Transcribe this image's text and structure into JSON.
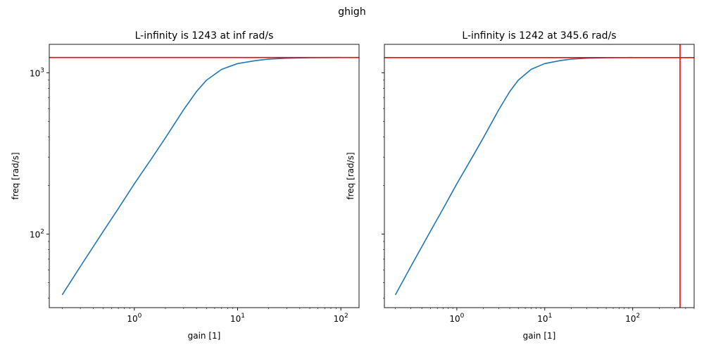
{
  "figure": {
    "suptitle": "ghigh"
  },
  "colors": {
    "curve": "#1f77b4",
    "limit": "#ff0000",
    "axes": "#000000"
  },
  "chart_data": [
    {
      "type": "line",
      "title": "L-infinity is 1243 at inf rad/s",
      "xlabel": "gain [1]",
      "ylabel": "freq [rad/s]",
      "xscale": "log",
      "yscale": "log",
      "xlim": [
        0.15,
        150
      ],
      "ylim": [
        35,
        1500
      ],
      "xticks": [
        1,
        10,
        100
      ],
      "xtick_labels": [
        "10^0",
        "10^1",
        "10^2"
      ],
      "yticks": [
        100,
        1000
      ],
      "ytick_labels": [
        "10^2",
        "10^3"
      ],
      "grid": false,
      "series": [
        {
          "x": [
            0.2,
            0.3,
            0.5,
            0.7,
            1.0,
            1.5,
            2.0,
            3.0,
            4.0,
            5.0,
            7.0,
            10.0,
            15.0,
            20.0,
            30.0,
            50.0,
            100.0
          ],
          "y": [
            42,
            63,
            104,
            144,
            205,
            300,
            395,
            590,
            765,
            900,
            1050,
            1140,
            1190,
            1215,
            1230,
            1240,
            1243
          ]
        }
      ],
      "hlines": [
        1243
      ],
      "vlines": []
    },
    {
      "type": "line",
      "title": "L-infinity is 1242 at 345.6 rad/s",
      "xlabel": "gain [1]",
      "ylabel": "freq [rad/s]",
      "xscale": "log",
      "yscale": "log",
      "xlim": [
        0.15,
        500
      ],
      "ylim": [
        35,
        1500
      ],
      "xticks": [
        1,
        10,
        100
      ],
      "xtick_labels": [
        "10^0",
        "10^1",
        "10^2"
      ],
      "yticks": [
        100,
        1000
      ],
      "ytick_labels": [
        "",
        ""
      ],
      "grid": false,
      "series": [
        {
          "x": [
            0.2,
            0.3,
            0.5,
            0.7,
            1.0,
            1.5,
            2.0,
            3.0,
            4.0,
            5.0,
            7.0,
            10.0,
            15.0,
            20.0,
            30.0,
            50.0,
            100.0
          ],
          "y": [
            42,
            63,
            104,
            144,
            205,
            300,
            395,
            590,
            765,
            900,
            1050,
            1140,
            1190,
            1215,
            1230,
            1240,
            1243
          ]
        }
      ],
      "hlines": [
        1242
      ],
      "vlines": [
        345.6
      ]
    }
  ]
}
